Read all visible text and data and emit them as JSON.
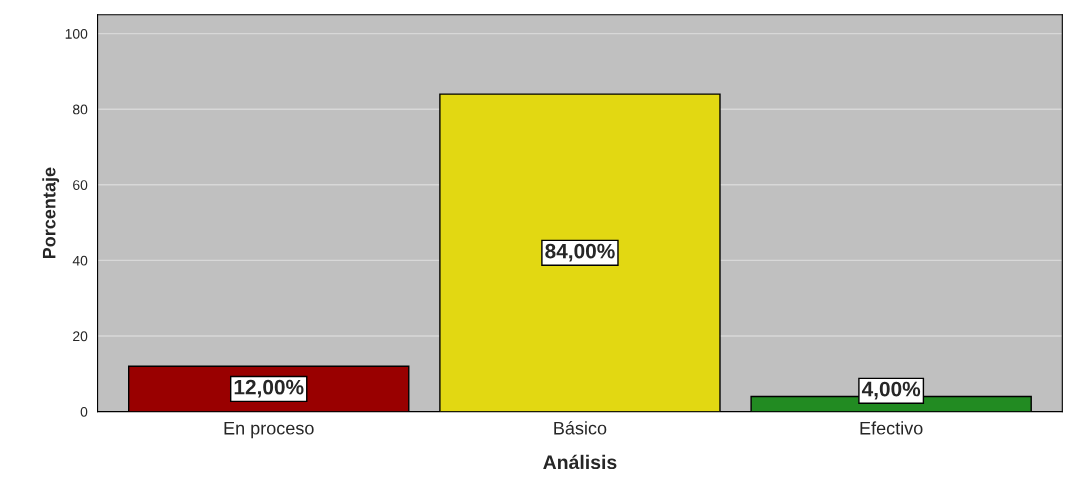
{
  "chart_data": {
    "type": "bar",
    "xlabel": "Análisis",
    "ylabel": "Porcentaje",
    "categories": [
      "En proceso",
      "Básico",
      "Efectivo"
    ],
    "values": [
      12,
      84,
      4
    ],
    "colors": [
      "#990000",
      "#e2d812",
      "#228b22"
    ],
    "value_labels": [
      "12,00%",
      "84,00%",
      "4,00%"
    ],
    "ylim": [
      0,
      105
    ],
    "yticks": [
      0,
      20,
      40,
      60,
      80,
      100
    ],
    "grid": "y"
  }
}
